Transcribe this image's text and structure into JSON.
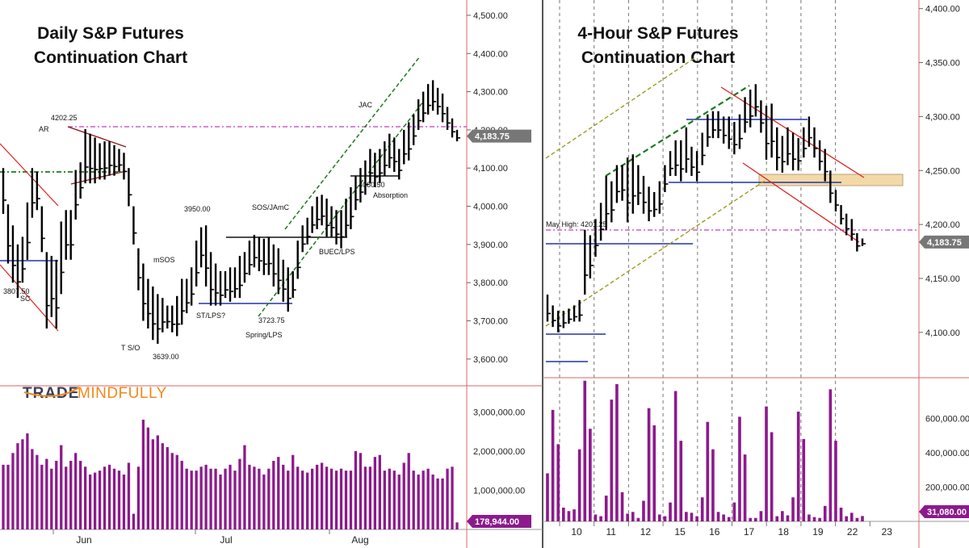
{
  "chart_data": [
    {
      "type": "bar",
      "title_lines": [
        "Daily S&P Futures",
        "Continuation Chart"
      ],
      "price_axis": {
        "ticks": [
          "4,500.00",
          "4,400.00",
          "4,300.00",
          "4,200.00",
          "4,100.00",
          "4,000.00",
          "3,900.00",
          "3,800.00",
          "3,700.00",
          "3,600.00"
        ],
        "ylim": [
          3530,
          4540
        ]
      },
      "volume_axis": {
        "ticks": [
          "3,000,000.00",
          "2,000,000.00",
          "1,000,000.00"
        ],
        "ylim": [
          0,
          3500000
        ]
      },
      "x_labels": [
        "Jun",
        "Jul",
        "Aug"
      ],
      "last_price": "4,183.75",
      "last_volume": "178,944.00",
      "annotations": [
        "4202.25",
        "AR",
        "3807.50",
        "SC",
        "T S/O",
        "3639.00",
        "mSOS",
        "3950.00",
        "ST/LPS?",
        "SOS/JAmC",
        "3723.75",
        "Spring/LPS",
        "BUEC/LPS",
        "4080.50",
        "Absorption",
        "JAC"
      ],
      "bars_high": [
        4100,
        4005,
        3950,
        3900,
        3920,
        4010,
        4100,
        4090,
        4000,
        3880,
        3870,
        3860,
        3960,
        3990,
        3990,
        4095,
        4115,
        4202,
        4190,
        4180,
        4165,
        4170,
        4170,
        4160,
        4150,
        4140,
        4100,
        4000,
        3890,
        3850,
        3810,
        3790,
        3770,
        3760,
        3740,
        3740,
        3765,
        3810,
        3810,
        3840,
        3910,
        3945,
        3950,
        3880,
        3850,
        3830,
        3830,
        3840,
        3840,
        3870,
        3880,
        3910,
        3925,
        3920,
        3915,
        3920,
        3900,
        3890,
        3860,
        3840,
        3830,
        3910,
        3950,
        3970,
        4000,
        4025,
        4030,
        4020,
        4000,
        3990,
        3990,
        4020,
        4050,
        4080,
        4100,
        4120,
        4150,
        4140,
        4150,
        4170,
        4190,
        4180,
        4150,
        4200,
        4220,
        4240,
        4280,
        4300,
        4320,
        4330,
        4310,
        4295,
        4260,
        4230,
        4200
      ],
      "bars_low": [
        3980,
        3850,
        3800,
        3760,
        3800,
        3860,
        3970,
        3990,
        3880,
        3680,
        3710,
        3680,
        3770,
        3860,
        3860,
        3965,
        4020,
        4060,
        4060,
        4060,
        4070,
        4070,
        4080,
        4080,
        4090,
        4070,
        4000,
        3900,
        3780,
        3700,
        3680,
        3650,
        3640,
        3670,
        3680,
        3670,
        3660,
        3690,
        3720,
        3740,
        3790,
        3840,
        3790,
        3740,
        3740,
        3740,
        3760,
        3750,
        3760,
        3760,
        3800,
        3820,
        3840,
        3830,
        3820,
        3820,
        3790,
        3770,
        3750,
        3724,
        3760,
        3810,
        3880,
        3900,
        3930,
        3940,
        3950,
        3920,
        3920,
        3900,
        3890,
        3920,
        3940,
        3990,
        4010,
        4030,
        4060,
        4050,
        4060,
        4080,
        4100,
        4090,
        4070,
        4110,
        4120,
        4160,
        4200,
        4220,
        4240,
        4250,
        4240,
        4220,
        4200,
        4180,
        4170
      ],
      "volume": [
        1650000,
        1650000,
        1950000,
        2200000,
        2300000,
        2450000,
        2050000,
        1900000,
        1650000,
        1800000,
        1550000,
        1750000,
        2150000,
        1600000,
        1750000,
        1950000,
        1750000,
        1600000,
        1400000,
        1450000,
        1500000,
        1600000,
        1650000,
        1550000,
        1500000,
        1400000,
        1700000,
        400000,
        1600000,
        2800000,
        2600000,
        2300000,
        2400000,
        2200000,
        2100000,
        1950000,
        1900000,
        1750000,
        1550000,
        1500000,
        1500000,
        1600000,
        1650000,
        1550000,
        1550000,
        1400000,
        1550000,
        1650000,
        1500000,
        1800000,
        2150000,
        1650000,
        1600000,
        1550000,
        1400000,
        1550000,
        1750000,
        1850000,
        1650000,
        1500000,
        1900000,
        1600000,
        1500000,
        1450000,
        1550000,
        1650000,
        1700000,
        1600000,
        1550000,
        1500000,
        1550000,
        1500000,
        1500000,
        2000000,
        1950000,
        1600000,
        1600000,
        1850000,
        1900000,
        1500000,
        1550000,
        1500000,
        1400000,
        1700000,
        1950000,
        1500000,
        1400000,
        1500000,
        1550000,
        1400000,
        1300000,
        1300000,
        1550000,
        1600000,
        178944
      ]
    },
    {
      "type": "bar",
      "title_lines": [
        "4-Hour S&P Futures",
        "Continuation Chart"
      ],
      "price_axis": {
        "ticks": [
          "4,400.00",
          "4,350.00",
          "4,300.00",
          "4,250.00",
          "4,200.00",
          "4,150.00",
          "4,100.00"
        ],
        "ylim": [
          4058,
          4408
        ]
      },
      "volume_axis": {
        "ticks": [
          "600,000.00",
          "400,000.00",
          "200,000.00"
        ],
        "ylim": [
          0,
          800000
        ]
      },
      "x_labels": [
        "10",
        "11",
        "12",
        "15",
        "16",
        "17",
        "18",
        "19",
        "22",
        "23"
      ],
      "last_price": "4,183.75",
      "last_volume": "31,080.00",
      "annotations": [
        "May High: 4201.25"
      ],
      "bars_high": [
        4135,
        4125,
        4120,
        4120,
        4122,
        4125,
        4130,
        4195,
        4190,
        4205,
        4220,
        4245,
        4240,
        4255,
        4255,
        4262,
        4265,
        4255,
        4245,
        4235,
        4230,
        4240,
        4255,
        4268,
        4278,
        4278,
        4290,
        4272,
        4268,
        4285,
        4302,
        4305,
        4305,
        4300,
        4300,
        4295,
        4302,
        4318,
        4325,
        4330,
        4315,
        4310,
        4312,
        4290,
        4282,
        4290,
        4285,
        4280,
        4290,
        4300,
        4290,
        4278,
        4270,
        4250,
        4232,
        4218,
        4210,
        4205,
        4192,
        4187
      ],
      "bars_low": [
        4110,
        4105,
        4100,
        4104,
        4108,
        4110,
        4110,
        4135,
        4150,
        4170,
        4185,
        4195,
        4202,
        4220,
        4222,
        4202,
        4210,
        4218,
        4210,
        4203,
        4207,
        4210,
        4230,
        4245,
        4245,
        4240,
        4248,
        4245,
        4240,
        4255,
        4272,
        4280,
        4280,
        4275,
        4270,
        4265,
        4270,
        4285,
        4290,
        4300,
        4285,
        4260,
        4262,
        4250,
        4248,
        4255,
        4250,
        4250,
        4262,
        4272,
        4262,
        4250,
        4240,
        4220,
        4212,
        4200,
        4190,
        4185,
        4175,
        4180
      ],
      "volume": [
        280000,
        650000,
        450000,
        80000,
        60000,
        70000,
        420000,
        820000,
        540000,
        40000,
        30000,
        150000,
        710000,
        800000,
        170000,
        45000,
        55000,
        20000,
        120000,
        660000,
        560000,
        40000,
        30000,
        110000,
        760000,
        470000,
        55000,
        50000,
        30000,
        140000,
        580000,
        420000,
        55000,
        40000,
        25000,
        110000,
        610000,
        390000,
        20000,
        20000,
        60000,
        670000,
        520000,
        30000,
        60000,
        35000,
        140000,
        640000,
        480000,
        40000,
        25000,
        20000,
        90000,
        770000,
        470000,
        80000,
        30000,
        50000,
        20000,
        31080
      ]
    }
  ]
}
